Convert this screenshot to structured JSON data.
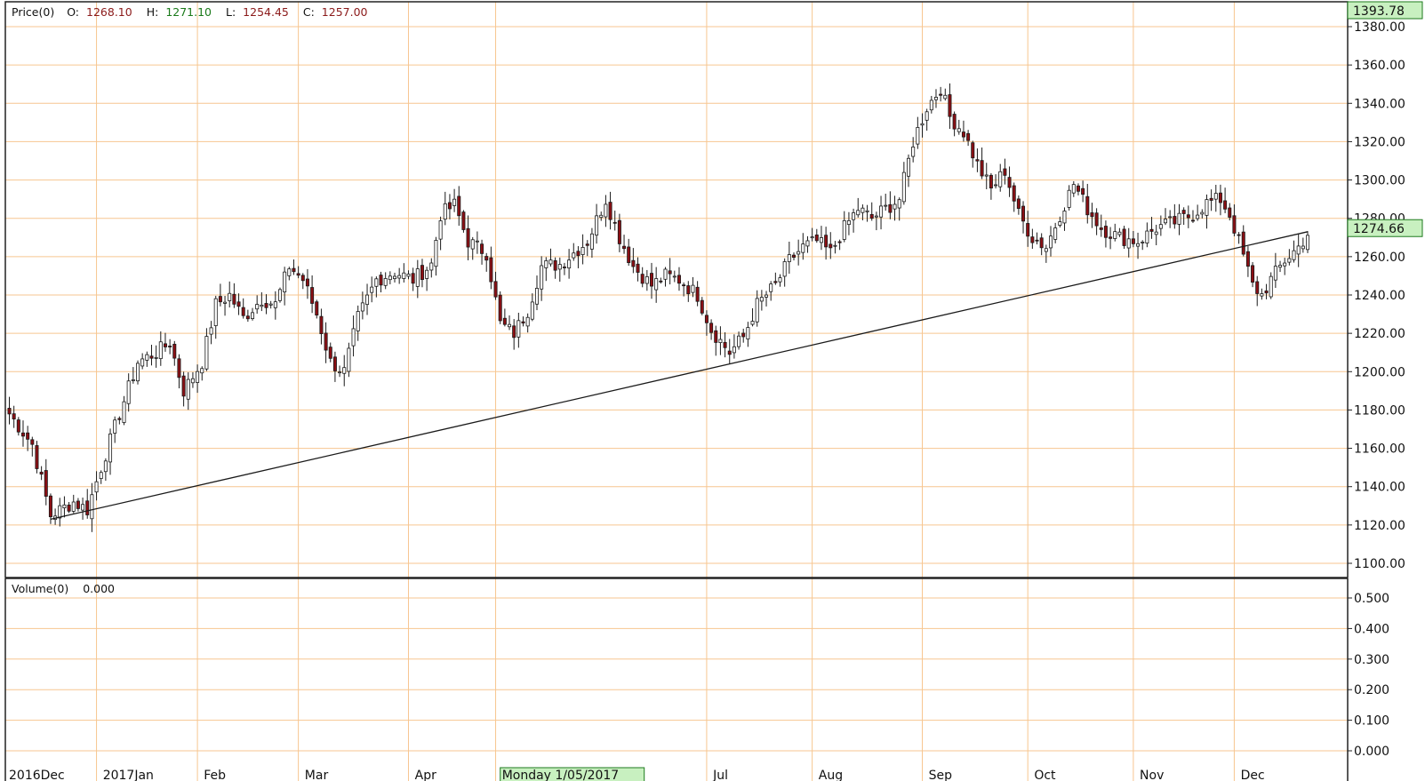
{
  "header": {
    "price_label": "Price(0)",
    "open_label": "O:",
    "open_value": "1268.10",
    "high_label": "H:",
    "high_value": "1271.10",
    "low_label": "L:",
    "low_value": "1254.45",
    "close_label": "C:",
    "close_value": "1257.00",
    "volume_label": "Volume(0)",
    "volume_value": "0.000"
  },
  "colors": {
    "grid": "#f7c690",
    "up_candle": "#ffffff",
    "down_candle": "#8b0f14",
    "candle_outline": "#1a1a1a",
    "trendline": "#1a1a1a",
    "marker_fill": "#c8f0c0",
    "marker_border": "#1e7a1e",
    "high_value_color": "#1a7a1a",
    "ohlc_value_color": "#8b1a1a"
  },
  "markers": {
    "top_value": "1393.78",
    "last_price": "1274.66",
    "cursor_date": "Monday 1/05/2017"
  },
  "chart_data": {
    "type": "candlestick",
    "x_months": [
      {
        "label": "2016Dec",
        "idx": 0
      },
      {
        "label": "2017Jan",
        "idx": 20
      },
      {
        "label": "Feb",
        "idx": 42
      },
      {
        "label": "Mar",
        "idx": 64
      },
      {
        "label": "Apr",
        "idx": 88
      },
      {
        "label": "Monday 1/05/2017",
        "idx": 107
      },
      {
        "label": "Jul",
        "idx": 153
      },
      {
        "label": "Aug",
        "idx": 176
      },
      {
        "label": "Sep",
        "idx": 200
      },
      {
        "label": "Oct",
        "idx": 223
      },
      {
        "label": "Nov",
        "idx": 246
      },
      {
        "label": "Dec",
        "idx": 268
      }
    ],
    "price_axis": {
      "min": 1090,
      "max": 1384,
      "ticks": [
        1100,
        1120,
        1140,
        1160,
        1180,
        1200,
        1220,
        1240,
        1260,
        1280,
        1300,
        1320,
        1340,
        1360,
        1380
      ]
    },
    "volume_axis": {
      "min": 0,
      "max": 0.5,
      "ticks": [
        0.0,
        0.1,
        0.2,
        0.3,
        0.4,
        0.5
      ]
    },
    "anchors": [
      [
        0,
        1178
      ],
      [
        5,
        1162
      ],
      [
        9,
        1125
      ],
      [
        14,
        1132
      ],
      [
        17,
        1128
      ],
      [
        20,
        1150
      ],
      [
        24,
        1178
      ],
      [
        28,
        1205
      ],
      [
        32,
        1210
      ],
      [
        35,
        1215
      ],
      [
        38,
        1190
      ],
      [
        42,
        1205
      ],
      [
        45,
        1235
      ],
      [
        48,
        1240
      ],
      [
        51,
        1228
      ],
      [
        55,
        1238
      ],
      [
        58,
        1235
      ],
      [
        61,
        1255
      ],
      [
        64,
        1248
      ],
      [
        67,
        1230
      ],
      [
        70,
        1205
      ],
      [
        73,
        1200
      ],
      [
        76,
        1228
      ],
      [
        80,
        1248
      ],
      [
        84,
        1252
      ],
      [
        88,
        1248
      ],
      [
        92,
        1256
      ],
      [
        94,
        1282
      ],
      [
        97,
        1287
      ],
      [
        100,
        1268
      ],
      [
        104,
        1262
      ],
      [
        107,
        1225
      ],
      [
        110,
        1220
      ],
      [
        113,
        1232
      ],
      [
        116,
        1255
      ],
      [
        120,
        1256
      ],
      [
        123,
        1262
      ],
      [
        126,
        1268
      ],
      [
        130,
        1290
      ],
      [
        133,
        1270
      ],
      [
        136,
        1255
      ],
      [
        140,
        1245
      ],
      [
        143,
        1250
      ],
      [
        146,
        1248
      ],
      [
        150,
        1240
      ],
      [
        153,
        1222
      ],
      [
        157,
        1210
      ],
      [
        160,
        1218
      ],
      [
        163,
        1235
      ],
      [
        167,
        1245
      ],
      [
        170,
        1258
      ],
      [
        173,
        1265
      ],
      [
        176,
        1268
      ],
      [
        179,
        1262
      ],
      [
        182,
        1275
      ],
      [
        185,
        1285
      ],
      [
        188,
        1280
      ],
      [
        191,
        1285
      ],
      [
        194,
        1290
      ],
      [
        197,
        1320
      ],
      [
        200,
        1338
      ],
      [
        203,
        1348
      ],
      [
        205,
        1333
      ],
      [
        208,
        1325
      ],
      [
        211,
        1308
      ],
      [
        214,
        1295
      ],
      [
        217,
        1305
      ],
      [
        220,
        1282
      ],
      [
        223,
        1270
      ],
      [
        226,
        1265
      ],
      [
        229,
        1282
      ],
      [
        232,
        1298
      ],
      [
        235,
        1285
      ],
      [
        238,
        1275
      ],
      [
        242,
        1270
      ],
      [
        246,
        1268
      ],
      [
        250,
        1275
      ],
      [
        254,
        1278
      ],
      [
        258,
        1282
      ],
      [
        261,
        1288
      ],
      [
        264,
        1290
      ],
      [
        266,
        1282
      ],
      [
        268,
        1268
      ],
      [
        271,
        1245
      ],
      [
        273,
        1240
      ],
      [
        275,
        1248
      ],
      [
        278,
        1258
      ],
      [
        281,
        1265
      ],
      [
        283,
        1272
      ]
    ],
    "num_bars": 284,
    "trendline": {
      "from": {
        "idx": 9,
        "price": 1123
      },
      "to": {
        "idx": 283,
        "price": 1273
      }
    },
    "volume_series": []
  }
}
